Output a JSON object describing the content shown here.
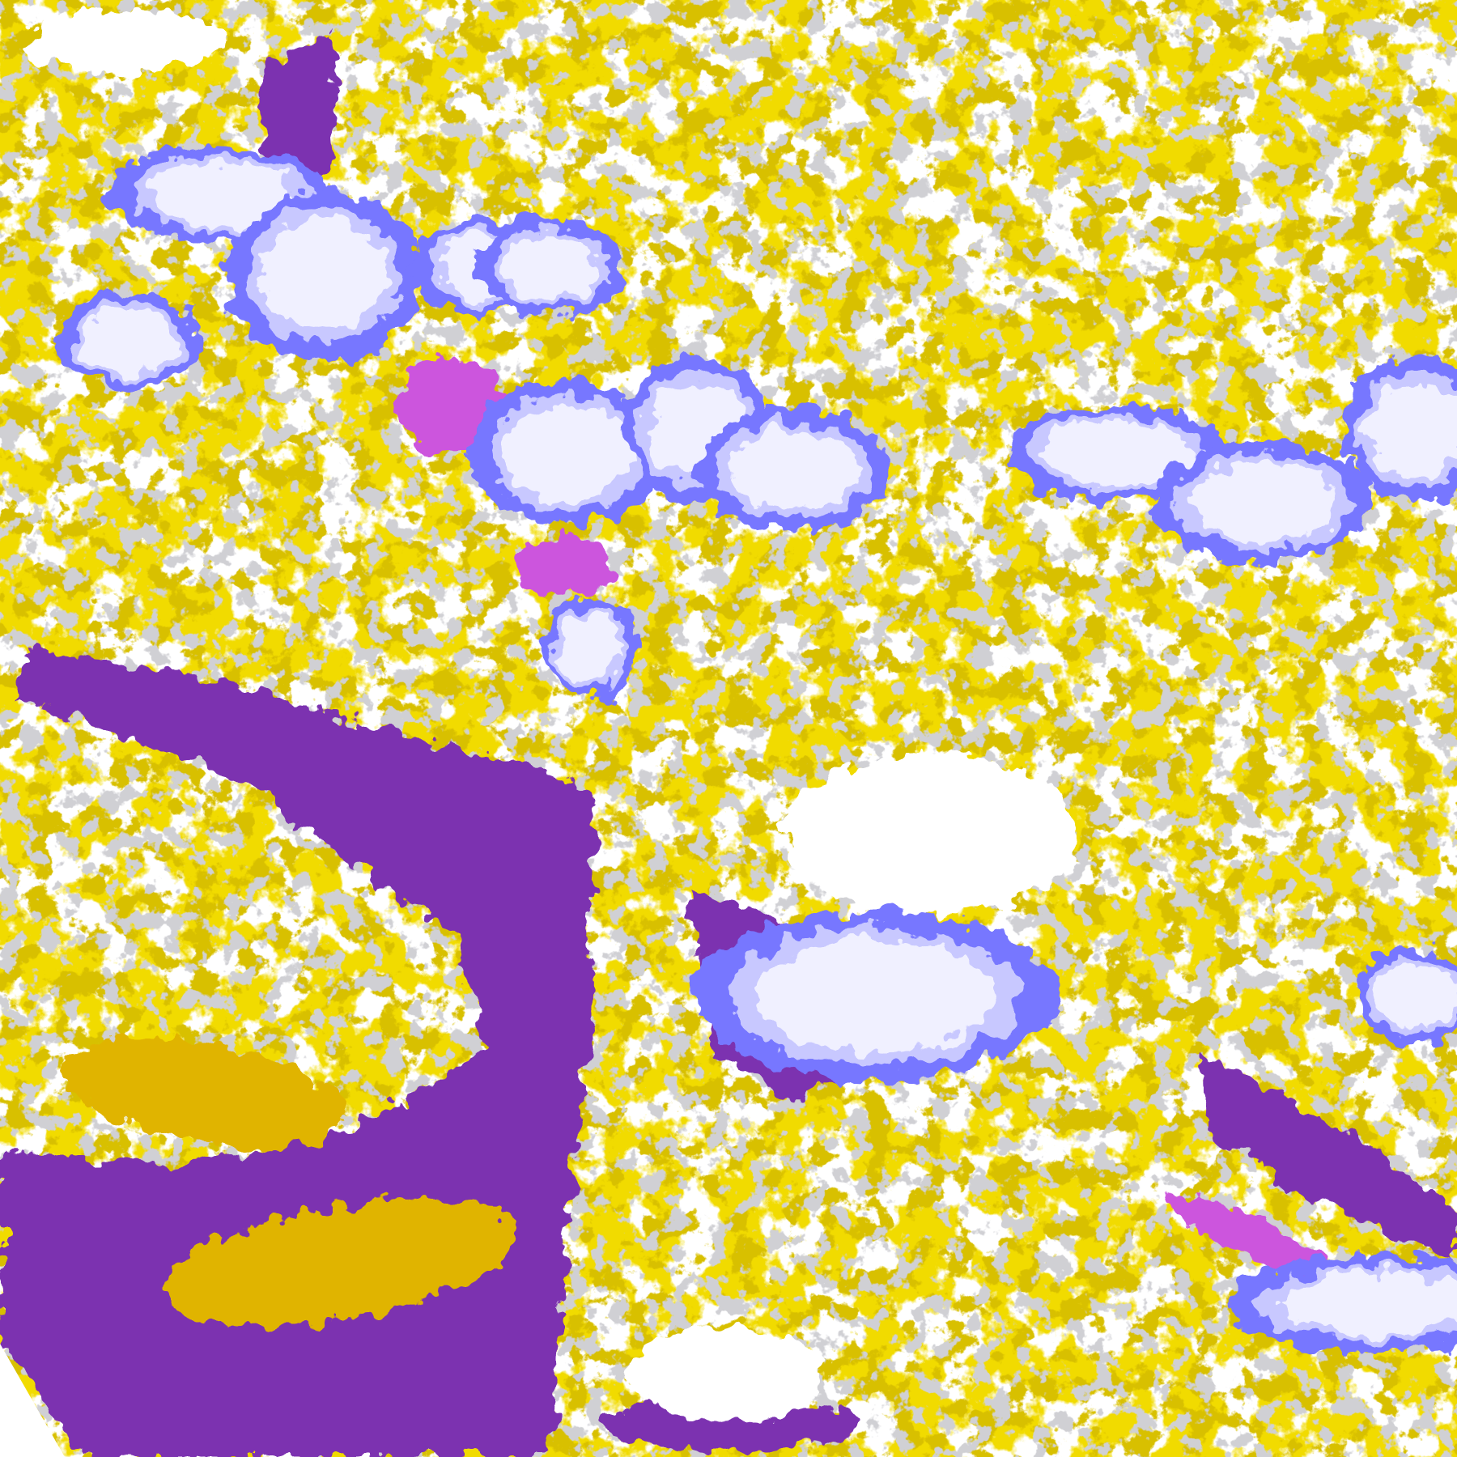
{
  "map": {
    "type": "classified satellite imagery",
    "palette": {
      "background": "#ffffff",
      "gold": "#e0b400",
      "dark_gold": "#b08600",
      "gray": "#a0a0a8",
      "purple": "#7b33b0",
      "blue": "#7777ff",
      "lavender": "#c8c8ff",
      "pale": "#f0f0ff",
      "magenta": "#cc55dd"
    }
  }
}
